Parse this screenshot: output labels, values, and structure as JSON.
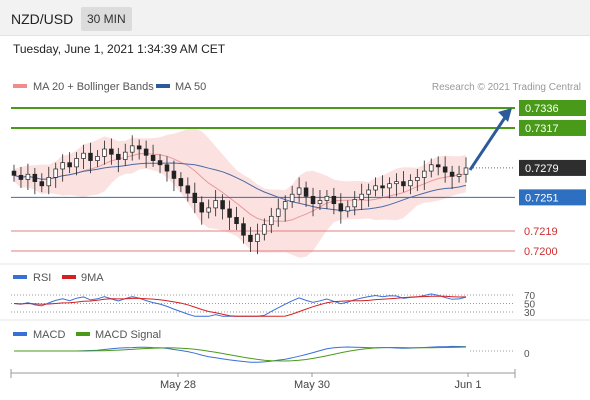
{
  "header": {
    "pair": "NZD/USD",
    "timeframe": "30 MIN"
  },
  "datetime": "Tuesday, June 1, 2021 1:34:39 AM CET",
  "chart_data": [
    {
      "type": "line",
      "panel": "price",
      "legend": [
        {
          "name": "MA 20 + Bollinger Bands",
          "color": "#f08c8c"
        },
        {
          "name": "MA 50",
          "color": "#2c5a9a"
        }
      ],
      "source": "Research © 2021 Trading Central",
      "y_labels_shown": [
        "0.7336",
        "0.7317",
        "0.7279",
        "0.7251",
        "0.7219",
        "0.7200"
      ],
      "levels": [
        {
          "value": 0.7336,
          "label": "0.7336",
          "color": "#4a9a1a",
          "kind": "target"
        },
        {
          "value": 0.7317,
          "label": "0.7317",
          "color": "#4a9a1a",
          "kind": "resistance"
        },
        {
          "value": 0.7279,
          "label": "0.7279",
          "color": "#2e2e2e",
          "kind": "last-price"
        },
        {
          "value": 0.7251,
          "label": "0.7251",
          "color": "#2d6fc0",
          "kind": "pivot"
        },
        {
          "value": 0.7219,
          "label": "0.7219",
          "color": "#e08080",
          "kind": "support"
        },
        {
          "value": 0.72,
          "label": "0.7200",
          "color": "#e08080",
          "kind": "support"
        }
      ],
      "x_ticks": [
        "May 28",
        "May 30",
        "Jun 1"
      ],
      "close_series": [
        0.7272,
        0.7268,
        0.7273,
        0.7266,
        0.7262,
        0.727,
        0.7278,
        0.7284,
        0.728,
        0.7288,
        0.7293,
        0.7286,
        0.729,
        0.7297,
        0.7292,
        0.7287,
        0.7294,
        0.73,
        0.7297,
        0.7291,
        0.7286,
        0.7282,
        0.7276,
        0.7269,
        0.7262,
        0.7255,
        0.7246,
        0.7237,
        0.7241,
        0.7248,
        0.724,
        0.7232,
        0.7226,
        0.7215,
        0.7209,
        0.7216,
        0.7225,
        0.7233,
        0.724,
        0.7247,
        0.7254,
        0.726,
        0.7252,
        0.7245,
        0.7248,
        0.7252,
        0.7245,
        0.7238,
        0.7242,
        0.7249,
        0.7254,
        0.7258,
        0.7262,
        0.726,
        0.7264,
        0.7266,
        0.7262,
        0.7267,
        0.727,
        0.7276,
        0.7282,
        0.728,
        0.7275,
        0.7271,
        0.7273,
        0.7279
      ],
      "arrow_target": 0.7336
    },
    {
      "type": "line",
      "panel": "rsi",
      "legend": [
        {
          "name": "RSI",
          "color": "#3a6fd8"
        },
        {
          "name": "9MA",
          "color": "#d42020"
        }
      ],
      "y_ticks": [
        70,
        50,
        30
      ],
      "ylim": [
        0,
        100
      ]
    },
    {
      "type": "line",
      "panel": "macd",
      "legend": [
        {
          "name": "MACD",
          "color": "#3a6fd8"
        },
        {
          "name": "MACD Signal",
          "color": "#4a9a1a"
        }
      ],
      "y_ticks": [
        0
      ]
    }
  ]
}
